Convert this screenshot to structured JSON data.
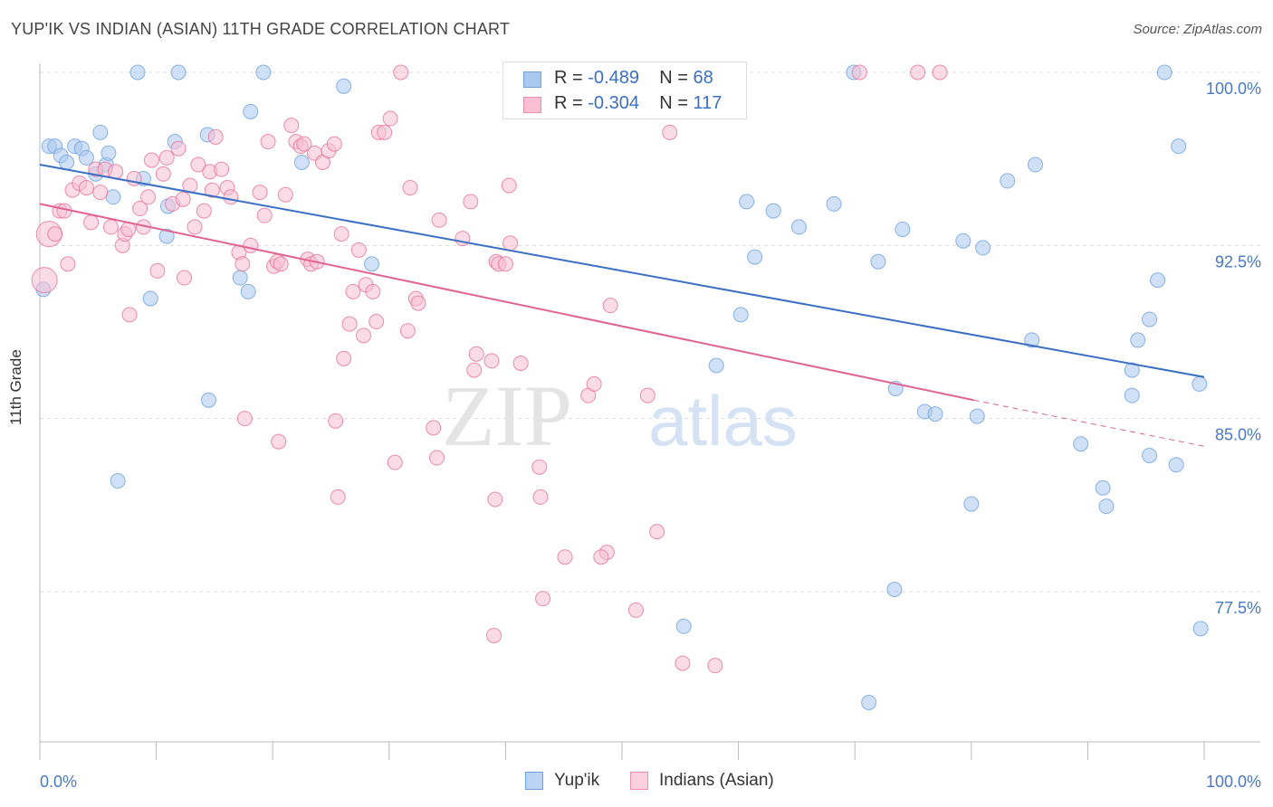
{
  "header": {
    "title": "YUP'IK VS INDIAN (ASIAN) 11TH GRADE CORRELATION CHART",
    "source": "Source: ZipAtlas.com"
  },
  "watermark": {
    "zip": "ZIP",
    "atlas": "atlas"
  },
  "legend": {
    "rows": [
      {
        "r_label": "R =",
        "r_value": "-0.489",
        "n_label": "N =",
        "n_value": "68",
        "color": "#6fa0e0"
      },
      {
        "r_label": "R =",
        "r_value": "-0.304",
        "n_label": "N =",
        "n_value": "117",
        "color": "#f08cae"
      }
    ]
  },
  "bottom_legend": [
    {
      "label": "Yup'ik",
      "color": "#a9c8f0"
    },
    {
      "label": "Indians (Asian)",
      "color": "#f8c0d2"
    }
  ],
  "chart_data": {
    "type": "scatter",
    "title": "YUP'IK VS INDIAN (ASIAN) 11TH GRADE CORRELATION CHART",
    "ylabel": "11th Grade",
    "xlabel": "",
    "xlim": [
      0,
      100
    ],
    "ylim": [
      70.5,
      101.5
    ],
    "x_tick_labels": [
      "0.0%",
      "100.0%"
    ],
    "y_ticks": [
      77.5,
      85.0,
      92.5,
      100.0
    ],
    "y_tick_labels": [
      "77.5%",
      "85.0%",
      "92.5%",
      "100.0%"
    ],
    "grid": true,
    "series": [
      {
        "name": "Yup'ik",
        "color": "#6fa0e0",
        "fill": "#a9c8f0",
        "trend": {
          "x0": 0,
          "y0": 96.0,
          "x1": 100,
          "y1": 86.8
        },
        "points": [
          [
            0.3,
            90.6
          ],
          [
            0.8,
            96.8
          ],
          [
            1.3,
            96.8
          ],
          [
            1.8,
            96.4
          ],
          [
            2.3,
            96.1
          ],
          [
            3.0,
            96.8
          ],
          [
            3.6,
            96.7
          ],
          [
            4.0,
            96.3
          ],
          [
            4.8,
            95.6
          ],
          [
            5.2,
            97.4
          ],
          [
            5.7,
            96.0
          ],
          [
            5.9,
            96.5
          ],
          [
            6.3,
            94.6
          ],
          [
            8.4,
            100
          ],
          [
            8.9,
            95.4
          ],
          [
            9.5,
            90.2
          ],
          [
            10.9,
            92.9
          ],
          [
            11.6,
            97.0
          ],
          [
            11.9,
            100
          ],
          [
            14.4,
            97.3
          ],
          [
            14.5,
            85.8
          ],
          [
            17.2,
            91.1
          ],
          [
            17.9,
            90.5
          ],
          [
            18.1,
            98.3
          ],
          [
            19.2,
            100
          ],
          [
            11.0,
            94.2
          ],
          [
            6.7,
            82.3
          ],
          [
            22.5,
            96.1
          ],
          [
            26.1,
            99.4
          ],
          [
            28.5,
            91.7
          ],
          [
            41.5,
            99.1
          ],
          [
            41.4,
            100
          ],
          [
            55.3,
            76.0
          ],
          [
            58.1,
            87.3
          ],
          [
            60.2,
            89.5
          ],
          [
            60.7,
            94.4
          ],
          [
            61.4,
            92.0
          ],
          [
            63.0,
            94.0
          ],
          [
            65.2,
            93.3
          ],
          [
            68.2,
            94.3
          ],
          [
            69.9,
            100
          ],
          [
            71.2,
            72.7
          ],
          [
            72.0,
            91.8
          ],
          [
            73.4,
            77.6
          ],
          [
            73.5,
            86.3
          ],
          [
            74.1,
            93.2
          ],
          [
            76.0,
            85.3
          ],
          [
            76.9,
            85.2
          ],
          [
            79.3,
            92.7
          ],
          [
            80.0,
            81.3
          ],
          [
            80.5,
            85.1
          ],
          [
            81.0,
            92.4
          ],
          [
            83.1,
            95.3
          ],
          [
            85.2,
            88.4
          ],
          [
            85.5,
            96.0
          ],
          [
            89.4,
            83.9
          ],
          [
            91.3,
            82.0
          ],
          [
            91.6,
            81.2
          ],
          [
            93.8,
            87.1
          ],
          [
            93.8,
            86.0
          ],
          [
            94.3,
            88.4
          ],
          [
            95.3,
            89.3
          ],
          [
            95.3,
            83.4
          ],
          [
            96.0,
            91.0
          ],
          [
            96.6,
            100
          ],
          [
            97.6,
            83.0
          ],
          [
            97.8,
            96.8
          ],
          [
            99.6,
            86.5
          ],
          [
            99.7,
            75.9
          ]
        ]
      },
      {
        "name": "Indians (Asian)",
        "color": "#e8729b",
        "fill": "#f8c0d2",
        "trend": {
          "x0": 0,
          "y0": 94.3,
          "x1": 80.2,
          "y1": 85.8,
          "x2": 100,
          "y2": 83.8
        },
        "points": [
          [
            0.4,
            91.0
          ],
          [
            0.8,
            93.0
          ],
          [
            1.3,
            93.0
          ],
          [
            1.7,
            94.0
          ],
          [
            2.1,
            94.0
          ],
          [
            2.4,
            91.7
          ],
          [
            2.8,
            94.9
          ],
          [
            3.4,
            95.2
          ],
          [
            4.0,
            95.0
          ],
          [
            4.4,
            93.5
          ],
          [
            4.8,
            95.8
          ],
          [
            5.2,
            94.8
          ],
          [
            5.6,
            95.8
          ],
          [
            6.1,
            93.3
          ],
          [
            6.5,
            95.7
          ],
          [
            7.1,
            92.5
          ],
          [
            7.3,
            93.0
          ],
          [
            7.6,
            93.2
          ],
          [
            7.7,
            89.5
          ],
          [
            8.1,
            95.4
          ],
          [
            8.6,
            94.1
          ],
          [
            8.9,
            93.3
          ],
          [
            9.3,
            94.6
          ],
          [
            9.6,
            96.2
          ],
          [
            10.1,
            91.4
          ],
          [
            10.6,
            95.6
          ],
          [
            10.9,
            96.3
          ],
          [
            11.4,
            94.3
          ],
          [
            11.9,
            96.7
          ],
          [
            12.3,
            94.5
          ],
          [
            12.4,
            91.1
          ],
          [
            12.9,
            95.1
          ],
          [
            13.3,
            93.3
          ],
          [
            13.6,
            96.0
          ],
          [
            14.1,
            94.0
          ],
          [
            14.6,
            95.7
          ],
          [
            14.8,
            94.9
          ],
          [
            15.1,
            97.2
          ],
          [
            15.6,
            95.8
          ],
          [
            16.1,
            95.0
          ],
          [
            16.4,
            94.6
          ],
          [
            17.1,
            92.2
          ],
          [
            17.4,
            91.7
          ],
          [
            17.6,
            85.0
          ],
          [
            18.1,
            92.5
          ],
          [
            18.9,
            94.8
          ],
          [
            19.3,
            93.8
          ],
          [
            19.6,
            97.0
          ],
          [
            20.1,
            91.6
          ],
          [
            20.4,
            91.8
          ],
          [
            20.7,
            91.7
          ],
          [
            21.1,
            94.7
          ],
          [
            21.6,
            97.7
          ],
          [
            22.0,
            97.0
          ],
          [
            22.4,
            96.8
          ],
          [
            22.7,
            96.9
          ],
          [
            23.0,
            91.9
          ],
          [
            23.3,
            91.7
          ],
          [
            23.6,
            96.5
          ],
          [
            23.8,
            91.8
          ],
          [
            24.3,
            96.1
          ],
          [
            24.8,
            96.6
          ],
          [
            25.3,
            96.9
          ],
          [
            25.6,
            81.6
          ],
          [
            26.1,
            87.6
          ],
          [
            25.4,
            84.9
          ],
          [
            25.9,
            93.0
          ],
          [
            26.6,
            89.1
          ],
          [
            26.9,
            90.5
          ],
          [
            27.4,
            92.3
          ],
          [
            27.8,
            88.6
          ],
          [
            28.0,
            90.8
          ],
          [
            28.6,
            90.5
          ],
          [
            28.9,
            89.2
          ],
          [
            29.1,
            97.4
          ],
          [
            29.6,
            97.4
          ],
          [
            30.1,
            98.0
          ],
          [
            30.5,
            83.1
          ],
          [
            31.6,
            88.8
          ],
          [
            31.8,
            95.0
          ],
          [
            32.3,
            90.2
          ],
          [
            32.5,
            90.0
          ],
          [
            31.0,
            100
          ],
          [
            33.8,
            84.6
          ],
          [
            34.1,
            83.3
          ],
          [
            34.3,
            93.6
          ],
          [
            36.3,
            92.8
          ],
          [
            37.0,
            94.4
          ],
          [
            37.5,
            87.8
          ],
          [
            38.8,
            87.5
          ],
          [
            39.2,
            91.8
          ],
          [
            39.4,
            91.7
          ],
          [
            40.0,
            91.7
          ],
          [
            40.3,
            95.1
          ],
          [
            40.4,
            92.6
          ],
          [
            41.3,
            87.4
          ],
          [
            43.0,
            81.6
          ],
          [
            43.2,
            77.2
          ],
          [
            42.9,
            82.9
          ],
          [
            45.1,
            79.0
          ],
          [
            47.1,
            86.0
          ],
          [
            47.6,
            86.5
          ],
          [
            48.7,
            79.2
          ],
          [
            49.0,
            89.9
          ],
          [
            51.2,
            76.7
          ],
          [
            52.2,
            86.0
          ],
          [
            53.0,
            80.1
          ],
          [
            54.1,
            97.4
          ],
          [
            55.2,
            74.4
          ],
          [
            58.0,
            74.3
          ],
          [
            47.7,
            100
          ],
          [
            48.5,
            100
          ],
          [
            70.4,
            100
          ],
          [
            75.4,
            100
          ],
          [
            77.3,
            100
          ],
          [
            48.2,
            79.0
          ],
          [
            39.0,
            75.6
          ],
          [
            39.1,
            81.5
          ],
          [
            37.3,
            87.1
          ],
          [
            20.5,
            84.0
          ]
        ]
      }
    ]
  }
}
